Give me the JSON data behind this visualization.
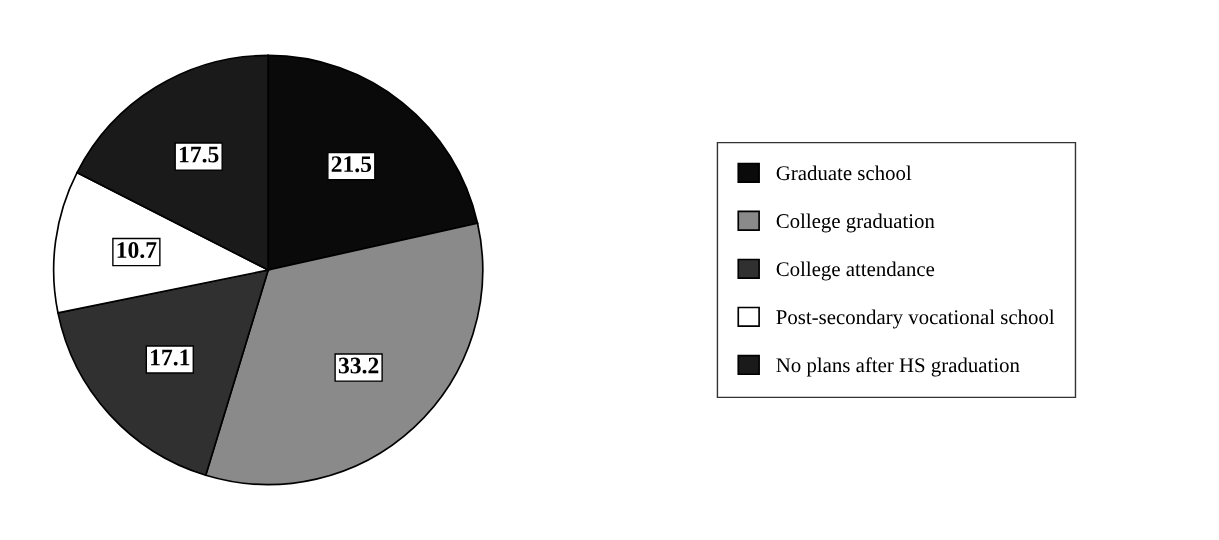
{
  "chart_data": {
    "type": "pie",
    "categories": [
      "Graduate school",
      "College graduation",
      "College attendance",
      "Post-secondary vocational school",
      "No plans after HS graduation"
    ],
    "values": [
      21.5,
      33.2,
      17.1,
      10.7,
      17.5
    ],
    "colors": [
      "#0a0a0a",
      "#8a8a8a",
      "#303030",
      "#ffffff",
      "#1a1a1a"
    ],
    "data_labels": true,
    "legend": "right"
  }
}
